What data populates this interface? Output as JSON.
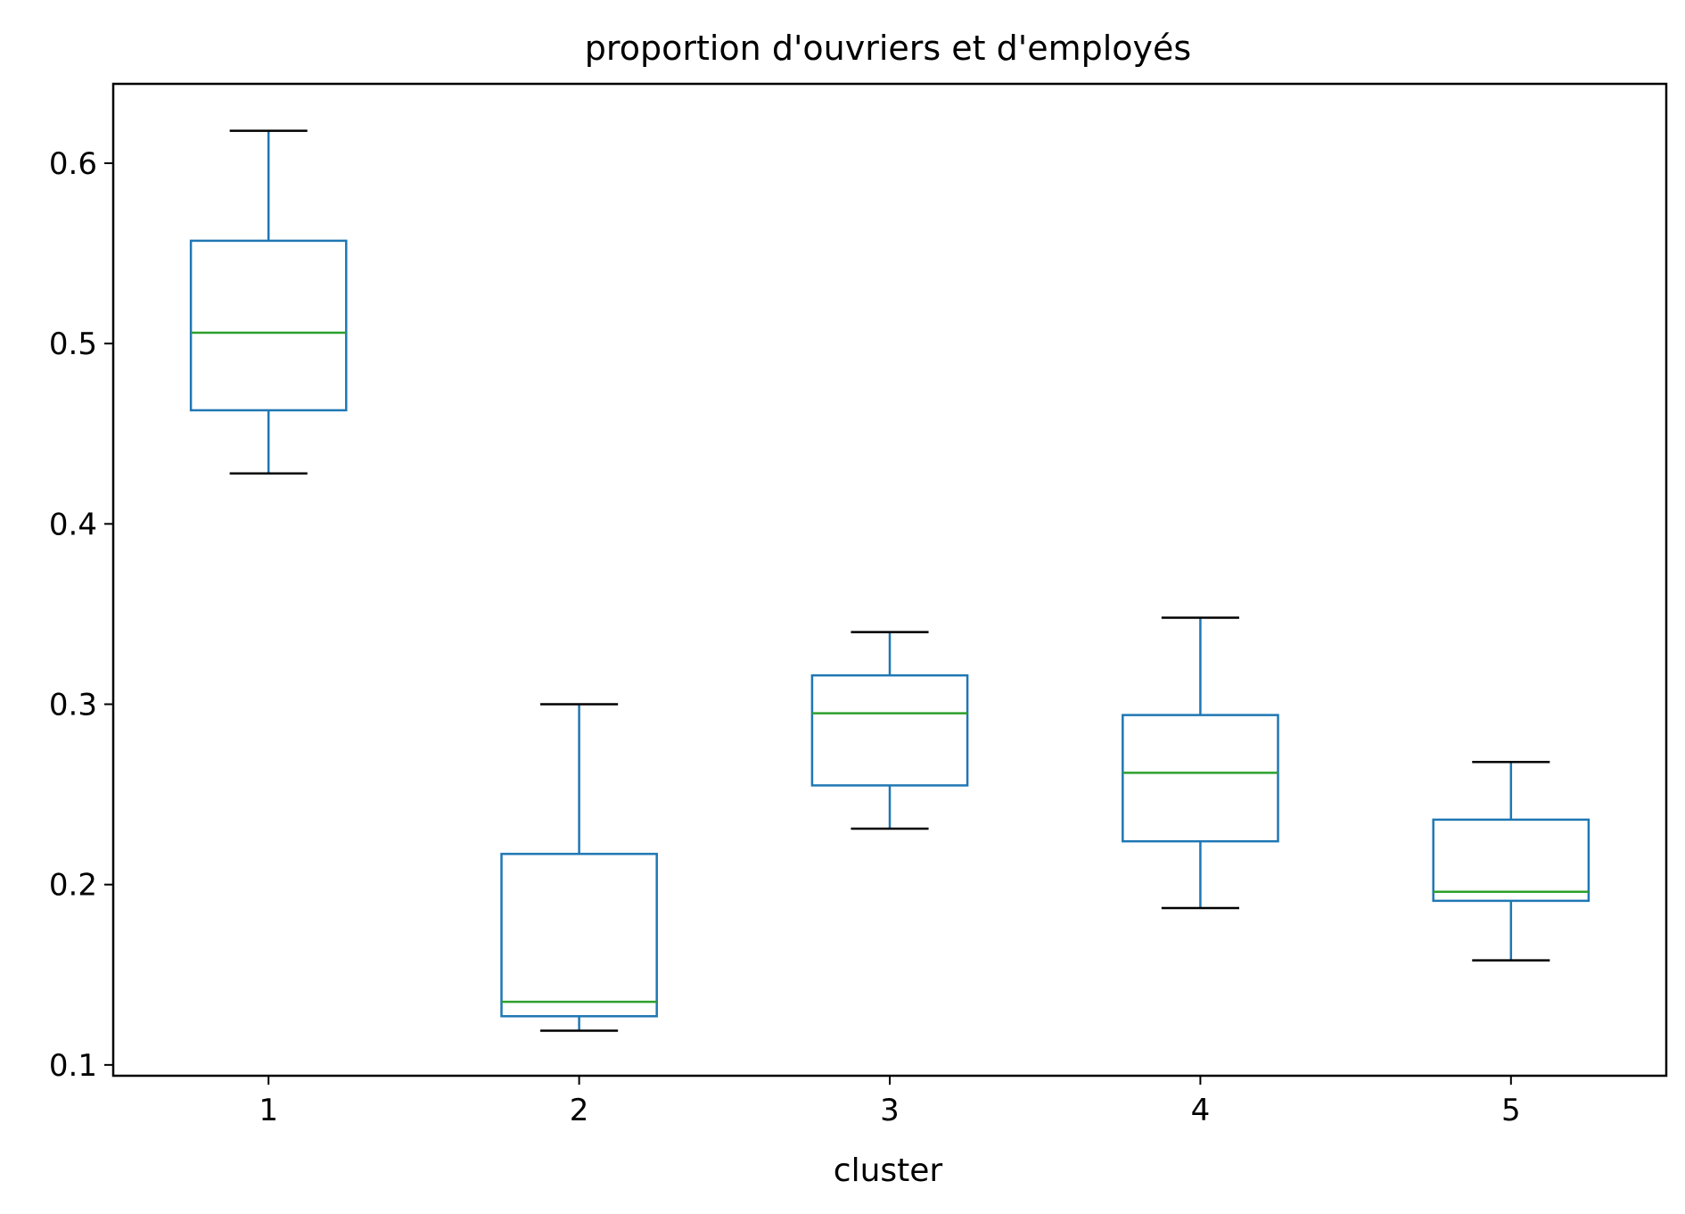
{
  "chart_data": {
    "type": "box",
    "title": "proportion d'ouvriers et d'employés",
    "xlabel": "cluster",
    "ylabel": "",
    "categories": [
      "1",
      "2",
      "3",
      "4",
      "5"
    ],
    "ylim": [
      0.094,
      0.644
    ],
    "yticks": [
      0.1,
      0.2,
      0.3,
      0.4,
      0.5,
      0.6
    ],
    "ytick_labels": [
      "0.1",
      "0.2",
      "0.3",
      "0.4",
      "0.5",
      "0.6"
    ],
    "grid": false,
    "boxes": [
      {
        "category": "1",
        "whisker_low": 0.428,
        "q1": 0.463,
        "median": 0.506,
        "q3": 0.557,
        "whisker_high": 0.618
      },
      {
        "category": "2",
        "whisker_low": 0.119,
        "q1": 0.127,
        "median": 0.135,
        "q3": 0.217,
        "whisker_high": 0.3
      },
      {
        "category": "3",
        "whisker_low": 0.231,
        "q1": 0.255,
        "median": 0.295,
        "q3": 0.316,
        "whisker_high": 0.34
      },
      {
        "category": "4",
        "whisker_low": 0.187,
        "q1": 0.224,
        "median": 0.262,
        "q3": 0.294,
        "whisker_high": 0.348
      },
      {
        "category": "5",
        "whisker_low": 0.158,
        "q1": 0.191,
        "median": 0.196,
        "q3": 0.236,
        "whisker_high": 0.268
      }
    ],
    "colors": {
      "box": "#1f77b4",
      "median": "#2ca02c",
      "cap": "#000000",
      "axes": "#000000"
    }
  }
}
